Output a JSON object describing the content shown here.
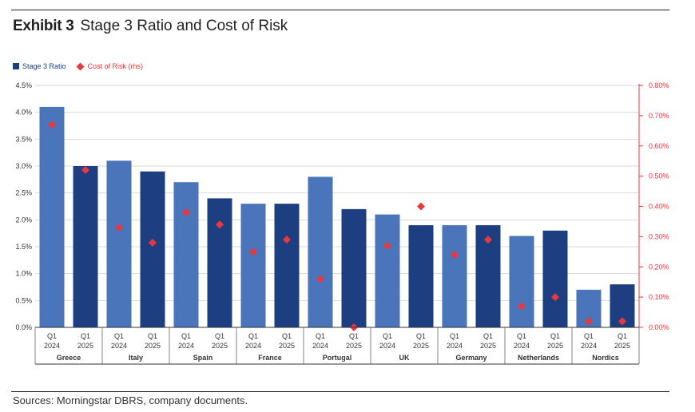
{
  "header": {
    "exhibit": "Exhibit 3",
    "title": "Stage 3 Ratio and Cost of Risk"
  },
  "legend": {
    "bar_label": "Stage 3 Ratio",
    "marker_label": "Cost of Risk (rhs)"
  },
  "footer": {
    "source": "Sources: Morningstar DBRS, company documents."
  },
  "colors": {
    "bar_2024": "#4a75bb",
    "bar_2025": "#1d3f82",
    "marker": "#e8383d",
    "grid": "#d9d9d9",
    "right_axis": "#e8383d"
  },
  "chart_data": {
    "type": "bar",
    "groups": [
      "Greece",
      "Italy",
      "Spain",
      "France",
      "Portugal",
      "UK",
      "Germany",
      "Netherlands",
      "Nordics"
    ],
    "periods": [
      [
        "Q1",
        "2024"
      ],
      [
        "Q1",
        "2025"
      ]
    ],
    "series": [
      {
        "name": "Stage 3 Ratio",
        "axis": "left",
        "unit": "%",
        "values": [
          [
            4.1,
            3.0
          ],
          [
            3.1,
            2.9
          ],
          [
            2.7,
            2.4
          ],
          [
            2.3,
            2.3
          ],
          [
            2.8,
            2.2
          ],
          [
            2.1,
            1.9
          ],
          [
            1.9,
            1.9
          ],
          [
            1.7,
            1.8
          ],
          [
            0.7,
            0.8
          ]
        ]
      },
      {
        "name": "Cost of Risk (rhs)",
        "axis": "right",
        "unit": "%",
        "values": [
          [
            0.67,
            0.52
          ],
          [
            0.33,
            0.28
          ],
          [
            0.38,
            0.34
          ],
          [
            0.25,
            0.29
          ],
          [
            0.16,
            0.0
          ],
          [
            0.27,
            0.4
          ],
          [
            0.24,
            0.29
          ],
          [
            0.07,
            0.1
          ],
          [
            0.02,
            0.02
          ]
        ]
      }
    ],
    "y_left": {
      "range": [
        0,
        4.5
      ],
      "ticks": [
        "0.0%",
        "0.5%",
        "1.0%",
        "1.5%",
        "2.0%",
        "2.5%",
        "3.0%",
        "3.5%",
        "4.0%",
        "4.5%"
      ]
    },
    "y_right": {
      "range": [
        0,
        0.8
      ],
      "ticks": [
        "0.00%",
        "0.10%",
        "0.20%",
        "0.30%",
        "0.40%",
        "0.50%",
        "0.60%",
        "0.70%",
        "0.80%"
      ]
    },
    "grid": true,
    "legend_position": "top-left"
  }
}
